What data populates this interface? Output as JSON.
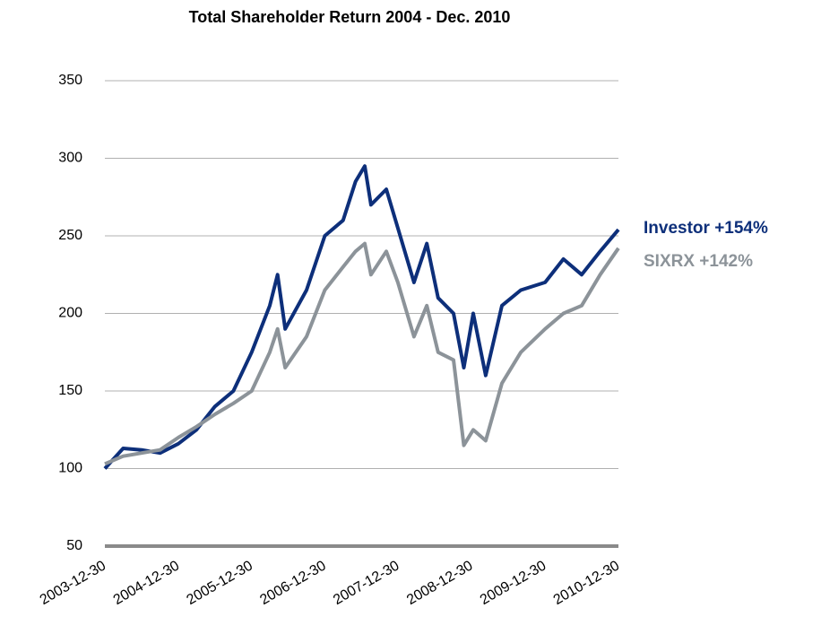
{
  "chart_data": {
    "type": "line",
    "title": "Total Shareholder Return 2004 - Dec. 2010",
    "x": [
      "2003-12-30",
      "2004-03-30",
      "2004-06-30",
      "2004-09-30",
      "2004-12-30",
      "2005-03-30",
      "2005-06-30",
      "2005-09-30",
      "2005-12-30",
      "2006-03-30",
      "2006-05-08",
      "2006-06-15",
      "2006-09-29",
      "2006-12-29",
      "2007-03-30",
      "2007-05-31",
      "2007-07-16",
      "2007-08-16",
      "2007-10-31",
      "2007-12-28",
      "2008-03-17",
      "2008-05-20",
      "2008-07-15",
      "2008-09-30",
      "2008-11-20",
      "2009-01-06",
      "2009-03-09",
      "2009-05-29",
      "2009-08-31",
      "2009-12-30",
      "2010-03-31",
      "2010-06-30",
      "2010-09-30",
      "2010-12-30"
    ],
    "series": [
      {
        "name": "Investor +154%",
        "color": "#0d2f7a",
        "values": [
          100,
          113,
          112,
          110,
          116,
          125,
          140,
          150,
          175,
          205,
          225,
          190,
          215,
          250,
          260,
          285,
          295,
          270,
          280,
          255,
          220,
          245,
          210,
          200,
          165,
          200,
          160,
          205,
          215,
          220,
          235,
          225,
          240,
          254
        ]
      },
      {
        "name": "SIXRX +142%",
        "color": "#8c9399",
        "values": [
          103,
          108,
          110,
          112,
          120,
          127,
          135,
          142,
          150,
          175,
          190,
          165,
          185,
          215,
          230,
          240,
          245,
          225,
          240,
          220,
          185,
          205,
          175,
          170,
          115,
          125,
          118,
          155,
          175,
          190,
          200,
          205,
          225,
          242
        ]
      }
    ],
    "xlim": [
      "2003-12-30",
      "2010-12-30"
    ],
    "xticks": [
      "2003-12-30",
      "2004-12-30",
      "2005-12-30",
      "2006-12-30",
      "2007-12-30",
      "2008-12-30",
      "2009-12-30",
      "2010-12-30"
    ],
    "ylim": [
      50,
      350
    ],
    "yticks": [
      50,
      100,
      150,
      200,
      250,
      300,
      350
    ],
    "grid": true
  }
}
